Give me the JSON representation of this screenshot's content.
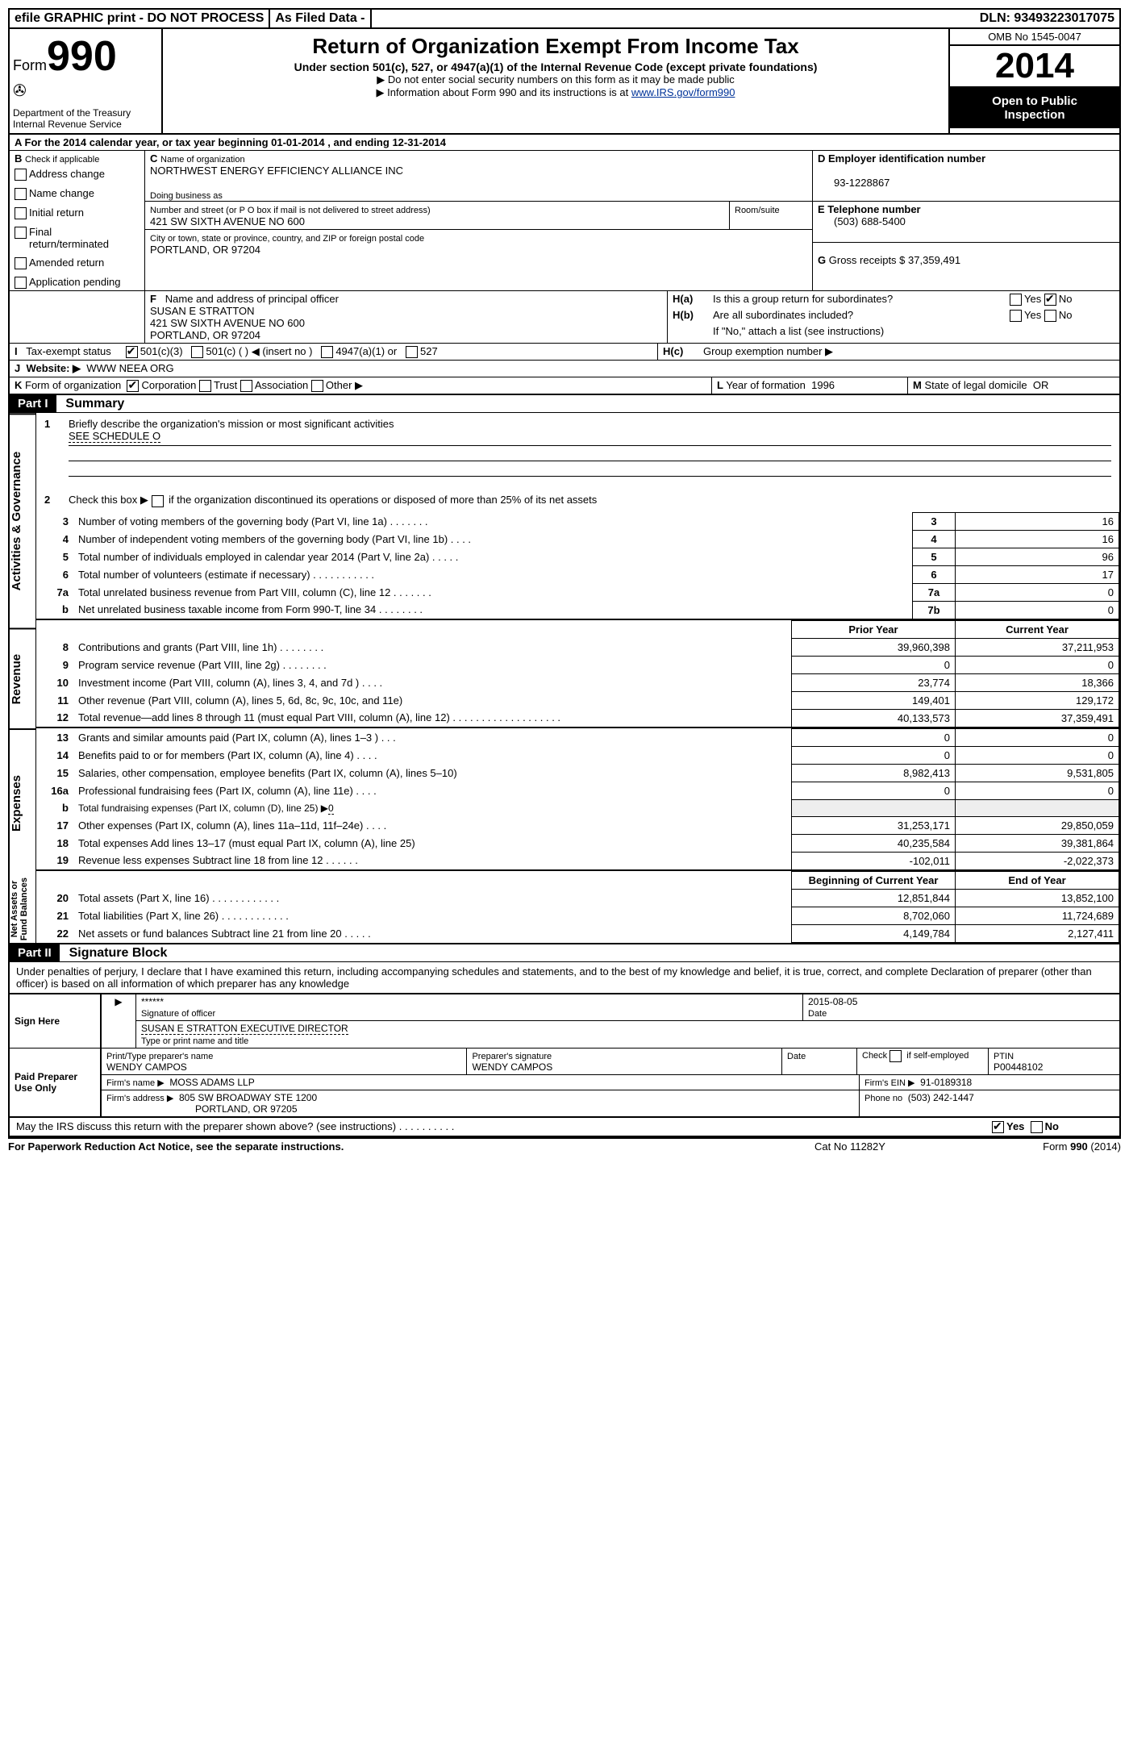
{
  "topbar": {
    "efile": "efile GRAPHIC print - DO NOT PROCESS",
    "asfiled": "As Filed Data -",
    "dln_label": "DLN:",
    "dln": "93493223017075"
  },
  "header": {
    "form_label": "Form",
    "form_num": "990",
    "dept1": "Department of the Treasury",
    "dept2": "Internal Revenue Service",
    "title": "Return of Organization Exempt From Income Tax",
    "subtitle": "Under section 501(c), 527, or 4947(a)(1) of the Internal Revenue Code (except private foundations)",
    "note1": "▶ Do not enter social security numbers on this form as it may be made public",
    "note2_a": "▶ Information about Form 990 and its instructions is at ",
    "note2_link": "www.IRS.gov/form990",
    "omb": "OMB No 1545-0047",
    "year": "2014",
    "open1": "Open to Public",
    "open2": "Inspection"
  },
  "lineA": {
    "text_a": "A For the 2014 calendar year, or tax year beginning ",
    "begin": "01-01-2014",
    "text_b": " , and ending ",
    "end": "12-31-2014"
  },
  "sectionB": {
    "label": "B",
    "check_if": "Check if applicable",
    "items": [
      "Address change",
      "Name change",
      "Initial return",
      "Final return/terminated",
      "Amended return",
      "Application pending"
    ]
  },
  "sectionC": {
    "label": "C",
    "name_label": "Name of organization",
    "name": "NORTHWEST ENERGY EFFICIENCY ALLIANCE INC",
    "dba_label": "Doing business as",
    "street_label": "Number and street (or P O  box if mail is not delivered to street address)",
    "room_label": "Room/suite",
    "street": "421 SW SIXTH AVENUE NO 600",
    "city_label": "City or town, state or province, country, and ZIP or foreign postal code",
    "city": "PORTLAND, OR  97204"
  },
  "sectionD": {
    "label": "D Employer identification number",
    "ein": "93-1228867"
  },
  "sectionE": {
    "label": "E Telephone number",
    "phone": "(503) 688-5400"
  },
  "sectionG": {
    "label": "G",
    "text": "Gross receipts $",
    "amount": "37,359,491"
  },
  "sectionF": {
    "label": "F",
    "text": "Name and address of principal officer",
    "name": "SUSAN E STRATTON",
    "addr1": "421 SW SIXTH AVENUE NO 600",
    "addr2": "PORTLAND, OR  97204"
  },
  "sectionH": {
    "ha_label": "H(a)",
    "ha_text": "Is this a group return for subordinates?",
    "hb_label": "H(b)",
    "hb_text": "Are all subordinates included?",
    "hb_note": "If \"No,\" attach a list  (see instructions)",
    "hc_label": "H(c)",
    "hc_text": "Group exemption number ▶",
    "yes": "Yes",
    "no": "No"
  },
  "sectionI": {
    "label": "I",
    "text": "Tax-exempt status",
    "c3": "501(c)(3)",
    "c": "501(c) (   ) ◀ (insert no )",
    "a1": "4947(a)(1) or",
    "s527": "527"
  },
  "sectionJ": {
    "label": "J",
    "text": "Website: ▶",
    "url": "WWW NEEA ORG"
  },
  "sectionK": {
    "label": "K",
    "text": "Form of organization",
    "corp": "Corporation",
    "trust": "Trust",
    "assoc": "Association",
    "other": "Other ▶"
  },
  "sectionL": {
    "label": "L",
    "text": "Year of formation",
    "year": "1996"
  },
  "sectionM": {
    "label": "M",
    "text": "State of legal domicile",
    "state": "OR"
  },
  "part1": {
    "label": "Part I",
    "title": "Summary",
    "side_labels": {
      "ag": "Activities & Governance",
      "rev": "Revenue",
      "exp": "Expenses",
      "net": "Net Assets or Fund Balances"
    },
    "line1_label": "1",
    "line1_text": "Briefly describe the organization's mission or most significant activities",
    "line1_value": "SEE SCHEDULE O",
    "line2_label": "2",
    "line2_text": "Check this box ▶",
    "line2_text2": "if the organization discontinued its operations or disposed of more than 25% of its net assets",
    "rows_ag": [
      {
        "num": "3",
        "desc": "Number of voting members of the governing body (Part VI, line 1a)   .    .    .    .    .    .    .",
        "label": "3",
        "val": "16"
      },
      {
        "num": "4",
        "desc": "Number of independent voting members of the governing body (Part VI, line 1b)    .    .    .    .",
        "label": "4",
        "val": "16"
      },
      {
        "num": "5",
        "desc": "Total number of individuals employed in calendar year 2014 (Part V, line 2a)   .    .    .    .    .",
        "label": "5",
        "val": "96"
      },
      {
        "num": "6",
        "desc": "Total number of volunteers (estimate if necessary)    .    .    .    .    .    .    .    .    .    .    .",
        "label": "6",
        "val": "17"
      },
      {
        "num": "7a",
        "desc": "Total unrelated business revenue from Part VIII, column (C), line 12   .    .    .    .    .    .    .",
        "label": "7a",
        "val": "0"
      },
      {
        "num": "b",
        "desc": "Net unrelated business taxable income from Form 990-T, line 34   .    .    .    .    .    .    .    .",
        "label": "7b",
        "val": "0"
      }
    ],
    "col_prior": "Prior Year",
    "col_current": "Current Year",
    "rows_rev": [
      {
        "num": "8",
        "desc": "Contributions and grants (Part VIII, line 1h)    .    .    .    .    .    .    .    .",
        "prior": "39,960,398",
        "curr": "37,211,953"
      },
      {
        "num": "9",
        "desc": "Program service revenue (Part VIII, line 2g)    .    .    .    .    .    .    .    .",
        "prior": "0",
        "curr": "0"
      },
      {
        "num": "10",
        "desc": "Investment income (Part VIII, column (A), lines 3, 4, and 7d )    .    .    .    .",
        "prior": "23,774",
        "curr": "18,366"
      },
      {
        "num": "11",
        "desc": "Other revenue (Part VIII, column (A), lines 5, 6d, 8c, 9c, 10c, and 11e)",
        "prior": "149,401",
        "curr": "129,172"
      },
      {
        "num": "12",
        "desc": "Total revenue—add lines 8 through 11 (must equal Part VIII, column (A), line 12)    .    .    .    .    .    .    .    .    .    .    .    .    .    .    .    .    .    .    .",
        "prior": "40,133,573",
        "curr": "37,359,491"
      }
    ],
    "rows_exp": [
      {
        "num": "13",
        "desc": "Grants and similar amounts paid (Part IX, column (A), lines 1–3 )    .    .    .",
        "prior": "0",
        "curr": "0"
      },
      {
        "num": "14",
        "desc": "Benefits paid to or for members (Part IX, column (A), line 4)    .    .    .    .",
        "prior": "0",
        "curr": "0"
      },
      {
        "num": "15",
        "desc": "Salaries, other compensation, employee benefits (Part IX, column (A), lines 5–10)",
        "prior": "8,982,413",
        "curr": "9,531,805"
      },
      {
        "num": "16a",
        "desc": "Professional fundraising fees (Part IX, column (A), line 11e)    .    .    .    .",
        "prior": "0",
        "curr": "0"
      },
      {
        "num": "b",
        "desc": "Total fundraising expenses (Part IX, column (D), line 25) ▶",
        "b_val": "0",
        "prior": "",
        "curr": ""
      },
      {
        "num": "17",
        "desc": "Other expenses (Part IX, column (A), lines 11a–11d, 11f–24e)    .    .    .    .",
        "prior": "31,253,171",
        "curr": "29,850,059"
      },
      {
        "num": "18",
        "desc": "Total expenses  Add lines 13–17 (must equal Part IX, column (A), line 25)",
        "prior": "40,235,584",
        "curr": "39,381,864"
      },
      {
        "num": "19",
        "desc": "Revenue less expenses  Subtract line 18 from line 12    .    .    .    .    .    .",
        "prior": "-102,011",
        "curr": "-2,022,373"
      }
    ],
    "col_begin": "Beginning of Current Year",
    "col_end": "End of Year",
    "rows_net": [
      {
        "num": "20",
        "desc": "Total assets (Part X, line 16)    .    .    .    .    .    .    .    .    .    .    .    .",
        "prior": "12,851,844",
        "curr": "13,852,100"
      },
      {
        "num": "21",
        "desc": "Total liabilities (Part X, line 26)    .    .    .    .    .    .    .    .    .    .    .    .",
        "prior": "8,702,060",
        "curr": "11,724,689"
      },
      {
        "num": "22",
        "desc": "Net assets or fund balances  Subtract line 21 from line 20    .    .    .    .    .",
        "prior": "4,149,784",
        "curr": "2,127,411"
      }
    ]
  },
  "part2": {
    "label": "Part II",
    "title": "Signature Block",
    "perjury": "Under penalties of perjury, I declare that I have examined this return, including accompanying schedules and statements, and to the best of my knowledge and belief, it is true, correct, and complete  Declaration of preparer (other than officer) is based on all information of which preparer has any knowledge",
    "sign_here": "Sign Here",
    "sig_stars": "******",
    "sig_officer": "Signature of officer",
    "sig_date": "2015-08-05",
    "date_label": "Date",
    "officer_name": "SUSAN E STRATTON EXECUTIVE DIRECTOR",
    "type_name": "Type or print name and title",
    "paid_prep": "Paid Preparer Use Only",
    "prep_name_label": "Print/Type preparer's name",
    "prep_name": "WENDY CAMPOS",
    "prep_sig_label": "Preparer's signature",
    "prep_sig": "WENDY CAMPOS",
    "prep_date_label": "Date",
    "self_emp": "Check         if self-employed",
    "ptin_label": "PTIN",
    "ptin": "P00448102",
    "firm_name_label": "Firm's name      ▶",
    "firm_name": "MOSS ADAMS LLP",
    "firm_ein_label": "Firm's EIN ▶",
    "firm_ein": "91-0189318",
    "firm_addr_label": "Firm's address ▶",
    "firm_addr1": "805 SW BROADWAY STE 1200",
    "firm_addr2": "PORTLAND, OR  97205",
    "firm_phone_label": "Phone no",
    "firm_phone": "(503) 242-1447",
    "discuss": "May the IRS discuss this return with the preparer shown above? (see instructions)    .    .    .    .    .    .    .    .    .    .",
    "yes": "Yes",
    "no": "No"
  },
  "footer": {
    "paperwork": "For Paperwork Reduction Act Notice, see the separate instructions.",
    "catno": "Cat No 11282Y",
    "formno": "Form 990 (2014)"
  }
}
